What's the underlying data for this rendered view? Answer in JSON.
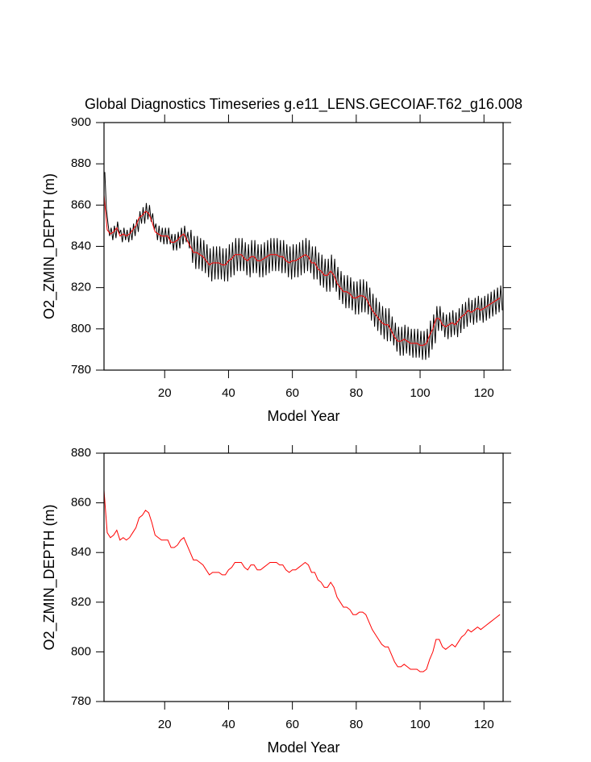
{
  "chart_data": [
    {
      "type": "line",
      "title": "Global Diagnostics Timeseries g.e11_LENS.GECOIAF.T62_g16.008",
      "x_label": "Model Year",
      "y_label": "O2_ZMIN_DEPTH (m)",
      "xlim": [
        1,
        126
      ],
      "ylim": [
        780,
        900
      ],
      "xticks": [
        20,
        40,
        60,
        80,
        100,
        120
      ],
      "yticks": [
        780,
        800,
        820,
        840,
        860,
        880,
        900
      ],
      "series": [
        {
          "color": "#000000",
          "x": [
            1.25,
            1.75,
            2.25,
            2.75,
            3.25,
            3.75,
            4.25,
            4.75,
            5.25,
            5.75,
            6.25,
            6.75,
            7.25,
            7.75,
            8.25,
            8.75,
            9.25,
            9.75,
            10.25,
            10.75,
            11.25,
            11.75,
            12.25,
            12.75,
            13.25,
            13.75,
            14.25,
            14.75,
            15.25,
            15.75,
            16.25,
            16.75,
            17.25,
            17.75,
            18.25,
            18.75,
            19.25,
            19.75,
            20.25,
            20.75,
            21.25,
            21.75,
            22.25,
            22.75,
            23.25,
            23.75,
            24.25,
            24.75,
            25.25,
            25.75,
            26.25,
            26.75,
            27.25,
            27.75,
            28.25,
            28.75,
            29.25,
            29.75,
            30.25,
            30.75,
            31.25,
            31.75,
            32.25,
            32.75,
            33.25,
            33.75,
            34.25,
            34.75,
            35.25,
            35.75,
            36.25,
            36.75,
            37.25,
            37.75,
            38.25,
            38.75,
            39.25,
            39.75,
            40.25,
            40.75,
            41.25,
            41.75,
            42.25,
            42.75,
            43.25,
            43.75,
            44.25,
            44.75,
            45.25,
            45.75,
            46.25,
            46.75,
            47.25,
            47.75,
            48.25,
            48.75,
            49.25,
            49.75,
            50.25,
            50.75,
            51.25,
            51.75,
            52.25,
            52.75,
            53.25,
            53.75,
            54.25,
            54.75,
            55.25,
            55.75,
            56.25,
            56.75,
            57.25,
            57.75,
            58.25,
            58.75,
            59.25,
            59.75,
            60.25,
            60.75,
            61.25,
            61.75,
            62.25,
            62.75,
            63.25,
            63.75,
            64.25,
            64.75,
            65.25,
            65.75,
            66.25,
            66.75,
            67.25,
            67.75,
            68.25,
            68.75,
            69.25,
            69.75,
            70.25,
            70.75,
            71.25,
            71.75,
            72.25,
            72.75,
            73.25,
            73.75,
            74.25,
            74.75,
            75.25,
            75.75,
            76.25,
            76.75,
            77.25,
            77.75,
            78.25,
            78.75,
            79.25,
            79.75,
            80.25,
            80.75,
            81.25,
            81.75,
            82.25,
            82.75,
            83.25,
            83.75,
            84.25,
            84.75,
            85.25,
            85.75,
            86.25,
            86.75,
            87.25,
            87.75,
            88.25,
            88.75,
            89.25,
            89.75,
            90.25,
            90.75,
            91.25,
            91.75,
            92.25,
            92.75,
            93.25,
            93.75,
            94.25,
            94.75,
            95.25,
            95.75,
            96.25,
            96.75,
            97.25,
            97.75,
            98.25,
            98.75,
            99.25,
            99.75,
            100.25,
            100.75,
            101.25,
            101.75,
            102.25,
            102.75,
            103.25,
            103.75,
            104.25,
            104.75,
            105.25,
            105.75,
            106.25,
            106.75,
            107.25,
            107.75,
            108.25,
            108.75,
            109.25,
            109.75,
            110.25,
            110.75,
            111.25,
            111.75,
            112.25,
            112.75,
            113.25,
            113.75,
            114.25,
            114.75,
            115.25,
            115.75,
            116.25,
            116.75,
            117.25,
            117.75,
            118.25,
            118.75,
            119.25,
            119.75,
            120.25,
            120.75,
            121.25,
            121.75,
            122.25,
            122.75,
            123.25,
            123.75,
            124.25,
            124.75,
            125.25,
            125.75
          ],
          "values": [
            876,
            858,
            851,
            845,
            849,
            843,
            850,
            844,
            852,
            846,
            848,
            842,
            849,
            843,
            848,
            842,
            849,
            843,
            851,
            845,
            853,
            847,
            857,
            851,
            859,
            851,
            861,
            853,
            860,
            852,
            856,
            848,
            851,
            843,
            850,
            842,
            849,
            841,
            849,
            841,
            849,
            841,
            846,
            838,
            846,
            838,
            847,
            839,
            849,
            841,
            850,
            842,
            847,
            839,
            848,
            832,
            845,
            829,
            845,
            829,
            844,
            828,
            843,
            827,
            841,
            825,
            839,
            823,
            840,
            824,
            840,
            824,
            840,
            824,
            839,
            823,
            839,
            823,
            841,
            825,
            842,
            826,
            844,
            828,
            844,
            828,
            844,
            828,
            842,
            826,
            841,
            825,
            843,
            827,
            843,
            827,
            841,
            825,
            841,
            825,
            842,
            826,
            843,
            827,
            844,
            828,
            844,
            828,
            844,
            828,
            843,
            827,
            843,
            827,
            841,
            825,
            840,
            824,
            841,
            825,
            841,
            825,
            842,
            826,
            843,
            827,
            844,
            828,
            843,
            827,
            840,
            824,
            840,
            824,
            837,
            821,
            836,
            820,
            834,
            818,
            834,
            818,
            836,
            820,
            834,
            818,
            830,
            814,
            828,
            812,
            826,
            810,
            826,
            810,
            825,
            809,
            823,
            807,
            823,
            807,
            824,
            808,
            824,
            808,
            823,
            807,
            820,
            804,
            817,
            801,
            815,
            799,
            813,
            797,
            811,
            795,
            810,
            794,
            810,
            794,
            806,
            792,
            803,
            789,
            801,
            787,
            801,
            787,
            802,
            788,
            801,
            787,
            800,
            786,
            800,
            786,
            800,
            786,
            799,
            785,
            799,
            785,
            800,
            786,
            804,
            790,
            807,
            793,
            811,
            799,
            811,
            799,
            808,
            796,
            807,
            795,
            808,
            796,
            809,
            797,
            808,
            796,
            810,
            798,
            812,
            800,
            813,
            801,
            815,
            803,
            814,
            802,
            815,
            803,
            816,
            804,
            815,
            803,
            816,
            804,
            817,
            805,
            818,
            806,
            819,
            807,
            820,
            808,
            821,
            809
          ]
        },
        {
          "color": "#ff0000",
          "x": [
            1,
            2,
            3,
            4,
            5,
            6,
            7,
            8,
            9,
            10,
            11,
            12,
            13,
            14,
            15,
            16,
            17,
            18,
            19,
            20,
            21,
            22,
            23,
            24,
            25,
            26,
            27,
            28,
            29,
            30,
            31,
            32,
            33,
            34,
            35,
            36,
            37,
            38,
            39,
            40,
            41,
            42,
            43,
            44,
            45,
            46,
            47,
            48,
            49,
            50,
            51,
            52,
            53,
            54,
            55,
            56,
            57,
            58,
            59,
            60,
            61,
            62,
            63,
            64,
            65,
            66,
            67,
            68,
            69,
            70,
            71,
            72,
            73,
            74,
            75,
            76,
            77,
            78,
            79,
            80,
            81,
            82,
            83,
            84,
            85,
            86,
            87,
            88,
            89,
            90,
            91,
            92,
            93,
            94,
            95,
            96,
            97,
            98,
            99,
            100,
            101,
            102,
            103,
            104,
            105,
            106,
            107,
            108,
            109,
            110,
            111,
            112,
            113,
            114,
            115,
            116,
            117,
            118,
            119,
            120,
            121,
            122,
            123,
            124,
            125
          ],
          "values": [
            865,
            848,
            846,
            847,
            849,
            845,
            846,
            845,
            846,
            848,
            850,
            854,
            855,
            857,
            856,
            852,
            847,
            846,
            845,
            845,
            845,
            842,
            842,
            843,
            845,
            846,
            843,
            840,
            837,
            837,
            836,
            835,
            833,
            831,
            832,
            832,
            832,
            831,
            831,
            833,
            834,
            836,
            836,
            836,
            834,
            833,
            835,
            835,
            833,
            833,
            834,
            835,
            836,
            836,
            836,
            835,
            835,
            833,
            832,
            833,
            833,
            834,
            835,
            836,
            835,
            832,
            832,
            829,
            828,
            826,
            826,
            828,
            826,
            822,
            820,
            818,
            818,
            817,
            815,
            815,
            816,
            816,
            815,
            812,
            809,
            807,
            805,
            803,
            802,
            802,
            799,
            796,
            794,
            794,
            795,
            794,
            793,
            793,
            793,
            792,
            792,
            793,
            797,
            800,
            805,
            805,
            802,
            801,
            802,
            803,
            802,
            804,
            806,
            807,
            809,
            808,
            809,
            810,
            809,
            810,
            811,
            812,
            813,
            814,
            815
          ]
        }
      ]
    },
    {
      "type": "line",
      "x_label": "Model Year",
      "y_label": "O2_ZMIN_DEPTH (m)",
      "xlim": [
        1,
        126
      ],
      "ylim": [
        780,
        880
      ],
      "xticks": [
        20,
        40,
        60,
        80,
        100,
        120
      ],
      "yticks": [
        780,
        800,
        820,
        840,
        860,
        880
      ],
      "series": [
        {
          "color": "#ff0000",
          "x": [
            1,
            2,
            3,
            4,
            5,
            6,
            7,
            8,
            9,
            10,
            11,
            12,
            13,
            14,
            15,
            16,
            17,
            18,
            19,
            20,
            21,
            22,
            23,
            24,
            25,
            26,
            27,
            28,
            29,
            30,
            31,
            32,
            33,
            34,
            35,
            36,
            37,
            38,
            39,
            40,
            41,
            42,
            43,
            44,
            45,
            46,
            47,
            48,
            49,
            50,
            51,
            52,
            53,
            54,
            55,
            56,
            57,
            58,
            59,
            60,
            61,
            62,
            63,
            64,
            65,
            66,
            67,
            68,
            69,
            70,
            71,
            72,
            73,
            74,
            75,
            76,
            77,
            78,
            79,
            80,
            81,
            82,
            83,
            84,
            85,
            86,
            87,
            88,
            89,
            90,
            91,
            92,
            93,
            94,
            95,
            96,
            97,
            98,
            99,
            100,
            101,
            102,
            103,
            104,
            105,
            106,
            107,
            108,
            109,
            110,
            111,
            112,
            113,
            114,
            115,
            116,
            117,
            118,
            119,
            120,
            121,
            122,
            123,
            124,
            125
          ],
          "values": [
            865,
            848,
            846,
            847,
            849,
            845,
            846,
            845,
            846,
            848,
            850,
            854,
            855,
            857,
            856,
            852,
            847,
            846,
            845,
            845,
            845,
            842,
            842,
            843,
            845,
            846,
            843,
            840,
            837,
            837,
            836,
            835,
            833,
            831,
            832,
            832,
            832,
            831,
            831,
            833,
            834,
            836,
            836,
            836,
            834,
            833,
            835,
            835,
            833,
            833,
            834,
            835,
            836,
            836,
            836,
            835,
            835,
            833,
            832,
            833,
            833,
            834,
            835,
            836,
            835,
            832,
            832,
            829,
            828,
            826,
            826,
            828,
            826,
            822,
            820,
            818,
            818,
            817,
            815,
            815,
            816,
            816,
            815,
            812,
            809,
            807,
            805,
            803,
            802,
            802,
            799,
            796,
            794,
            794,
            795,
            794,
            793,
            793,
            793,
            792,
            792,
            793,
            797,
            800,
            805,
            805,
            802,
            801,
            802,
            803,
            802,
            804,
            806,
            807,
            809,
            808,
            809,
            810,
            809,
            810,
            811,
            812,
            813,
            814,
            815
          ]
        }
      ]
    }
  ]
}
